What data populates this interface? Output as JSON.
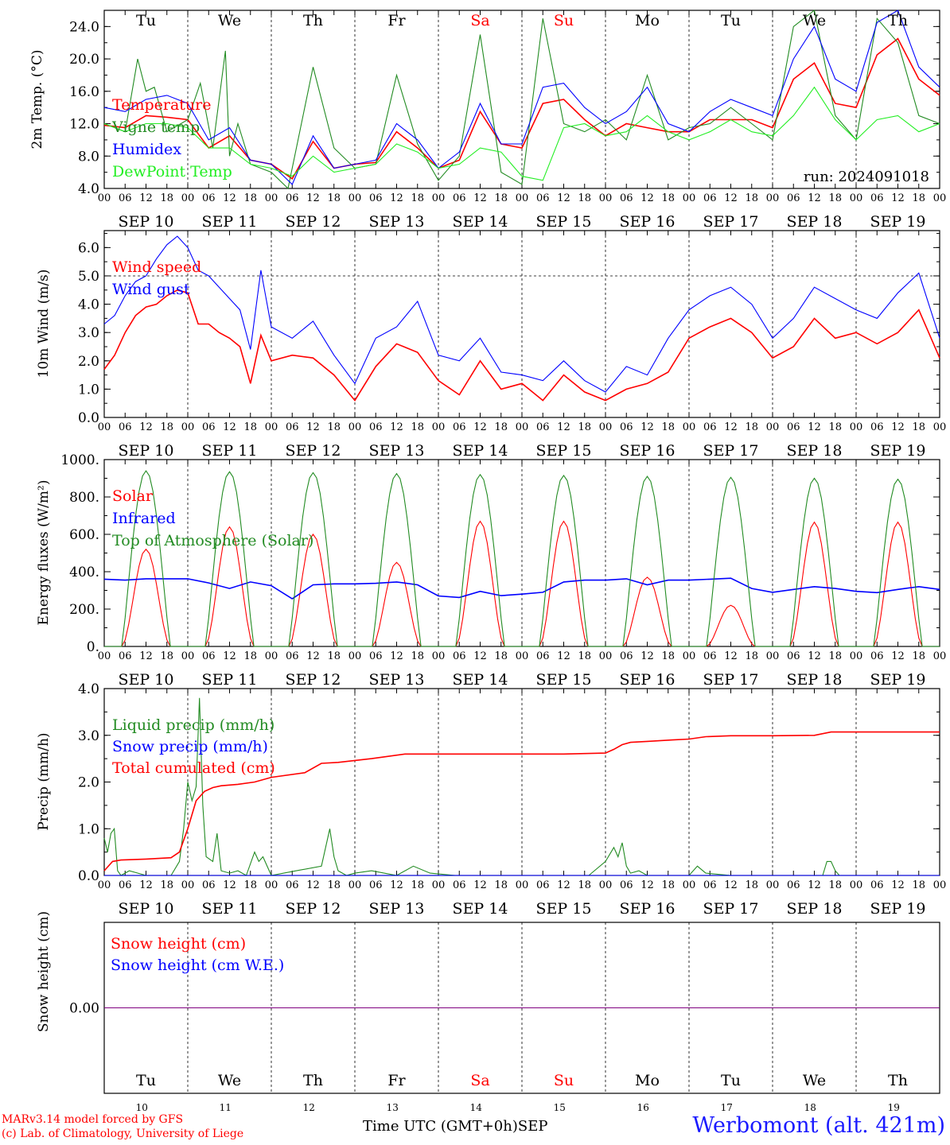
{
  "station": "Werbomont (alt. 421m)",
  "credits": [
    "MARv3.14 model forced by GFS",
    "(c) Lab. of Climatology, University of Liege"
  ],
  "xaxis_title": "Time UTC (GMT+0h)",
  "month_label": "SEP",
  "colors": {
    "red": "#ff0000",
    "green": "#228B22",
    "blue": "#0000ff",
    "lightgreen": "#22ee22",
    "purple": "#800080",
    "station": "#1a1aff"
  },
  "days": {
    "weekdays": [
      "Tu",
      "We",
      "Th",
      "Fr",
      "Sa",
      "Su",
      "Mo",
      "Tu",
      "We",
      "Th"
    ],
    "weekend_flags": [
      false,
      false,
      false,
      false,
      true,
      true,
      false,
      false,
      false,
      false
    ],
    "dates": [
      "SEP 10",
      "SEP 11",
      "SEP 12",
      "SEP 13",
      "SEP 14",
      "SEP 15",
      "SEP 16",
      "SEP 17",
      "SEP 18",
      "SEP 19"
    ],
    "day_numbers": [
      "10",
      "11",
      "12",
      "13",
      "14",
      "15",
      "16",
      "17",
      "18",
      "19"
    ],
    "hour_ticks": [
      "00",
      "06",
      "12",
      "18"
    ],
    "last_hour_tick": "00"
  },
  "chart_data": [
    {
      "type": "line",
      "id": "temp",
      "ylabel": "2m Temp. (°C)",
      "ylim": [
        4,
        26
      ],
      "yticks": [
        "4.0",
        "8.0",
        "12.0",
        "16.0",
        "20.0",
        "24.0"
      ],
      "ytick_values": [
        4,
        8,
        12,
        16,
        20,
        24
      ],
      "annotation": "run: 2024091018",
      "x_unit": "days since SEP 10 00 UTC",
      "series": [
        {
          "name": "Temperature",
          "color": "#ff0000",
          "x": [
            0,
            0.25,
            0.5,
            0.75,
            1,
            1.25,
            1.5,
            1.75,
            2,
            2.25,
            2.5,
            2.75,
            3,
            3.25,
            3.5,
            3.75,
            4,
            4.25,
            4.5,
            4.75,
            5,
            5.25,
            5.5,
            5.75,
            6,
            6.25,
            6.5,
            6.75,
            7,
            7.25,
            7.5,
            7.75,
            8,
            8.25,
            8.5,
            8.75,
            9,
            9.25,
            9.5,
            9.75,
            10
          ],
          "values": [
            11.8,
            11.5,
            13.0,
            12.8,
            12.5,
            9.0,
            10.5,
            7.5,
            7.0,
            5.2,
            9.8,
            6.5,
            7.0,
            7.2,
            11.0,
            9.0,
            6.5,
            7.5,
            13.5,
            9.5,
            9.0,
            14.5,
            15.0,
            12.5,
            10.5,
            12.0,
            11.5,
            11.0,
            11.0,
            12.5,
            12.5,
            12.5,
            11.5,
            17.5,
            19.5,
            14.5,
            14.0,
            20.5,
            22.5,
            17.5,
            15.5
          ]
        },
        {
          "name": "Vigne temp",
          "color": "#228B22",
          "x": [
            0,
            0.25,
            0.4,
            0.5,
            0.6,
            0.75,
            1,
            1.15,
            1.3,
            1.45,
            1.5,
            1.6,
            1.75,
            2,
            2.2,
            2.5,
            2.75,
            3,
            3.25,
            3.5,
            3.75,
            4,
            4.25,
            4.5,
            4.75,
            5,
            5.25,
            5.5,
            5.75,
            6,
            6.25,
            6.5,
            6.75,
            7,
            7.25,
            7.5,
            7.75,
            8,
            8.25,
            8.5,
            8.75,
            9,
            9.25,
            9.5,
            9.75,
            10
          ],
          "values": [
            12.0,
            11.0,
            20.0,
            16.0,
            16.5,
            11.0,
            12.5,
            17.0,
            9.0,
            21.0,
            8.0,
            12.0,
            7.0,
            6.0,
            4.0,
            19.0,
            9.0,
            6.5,
            7.0,
            18.0,
            9.5,
            5.0,
            8.0,
            23.0,
            6.0,
            4.5,
            25.0,
            12.0,
            11.0,
            12.5,
            10.0,
            18.0,
            10.0,
            11.5,
            12.0,
            14.0,
            12.0,
            10.0,
            24.0,
            26.0,
            13.0,
            10.0,
            25.0,
            22.0,
            13.0,
            12.0
          ]
        },
        {
          "name": "Humidex",
          "color": "#0000ff",
          "x": [
            0,
            0.25,
            0.5,
            0.75,
            1,
            1.25,
            1.5,
            1.75,
            2,
            2.25,
            2.5,
            2.75,
            3,
            3.25,
            3.5,
            3.75,
            4,
            4.25,
            4.5,
            4.75,
            5,
            5.25,
            5.5,
            5.75,
            6,
            6.25,
            6.5,
            6.75,
            7,
            7.25,
            7.5,
            7.75,
            8,
            8.25,
            8.5,
            8.75,
            9,
            9.25,
            9.5,
            9.75,
            10
          ],
          "values": [
            14.0,
            13.5,
            15.0,
            15.5,
            14.5,
            10.0,
            11.5,
            7.5,
            7.0,
            4.5,
            10.5,
            6.5,
            7.0,
            7.5,
            12.0,
            10.0,
            6.5,
            8.5,
            14.5,
            9.5,
            9.5,
            16.5,
            17.0,
            14.0,
            12.0,
            13.5,
            16.5,
            12.0,
            11.0,
            13.5,
            15.0,
            14.0,
            13.0,
            20.0,
            24.0,
            17.5,
            16.0,
            24.5,
            26.0,
            19.0,
            16.5
          ]
        },
        {
          "name": "DewPoint Temp",
          "color": "#22ee22",
          "x": [
            0,
            0.25,
            0.5,
            0.75,
            1,
            1.25,
            1.5,
            1.75,
            2,
            2.25,
            2.5,
            2.75,
            3,
            3.25,
            3.5,
            3.75,
            4,
            4.25,
            4.5,
            4.75,
            5,
            5.25,
            5.5,
            5.75,
            6,
            6.25,
            6.5,
            6.75,
            7,
            7.25,
            7.5,
            7.75,
            8,
            8.25,
            8.5,
            8.75,
            9,
            9.25,
            9.5,
            9.75,
            10
          ],
          "values": [
            12.0,
            11.0,
            12.0,
            12.0,
            11.5,
            9.0,
            9.0,
            7.0,
            6.5,
            5.5,
            8.0,
            6.0,
            6.5,
            7.0,
            9.5,
            8.5,
            6.5,
            7.0,
            9.0,
            8.5,
            5.5,
            5.0,
            11.5,
            12.0,
            10.5,
            11.0,
            13.0,
            11.0,
            10.0,
            11.0,
            12.5,
            11.0,
            10.5,
            13.0,
            16.5,
            12.5,
            10.0,
            12.5,
            13.0,
            11.0,
            12.0
          ]
        }
      ]
    },
    {
      "type": "line",
      "id": "wind",
      "ylabel": "10m Wind (m/s)",
      "ylim": [
        0,
        6.6
      ],
      "yticks": [
        "0.0",
        "1.0",
        "2.0",
        "3.0",
        "4.0",
        "5.0",
        "6.0"
      ],
      "ytick_values": [
        0,
        1,
        2,
        3,
        4,
        5,
        6
      ],
      "reference_line": 5.0,
      "x_unit": "days since SEP 10 00 UTC",
      "series": [
        {
          "name": "Wind speed",
          "color": "#ff0000",
          "x": [
            0,
            0.125,
            0.25,
            0.375,
            0.5,
            0.625,
            0.75,
            0.875,
            1,
            1.125,
            1.25,
            1.375,
            1.5,
            1.625,
            1.75,
            1.875,
            2,
            2.25,
            2.5,
            2.75,
            3,
            3.25,
            3.5,
            3.75,
            4,
            4.25,
            4.5,
            4.75,
            5,
            5.25,
            5.5,
            5.75,
            6,
            6.25,
            6.5,
            6.75,
            7,
            7.25,
            7.5,
            7.75,
            8,
            8.25,
            8.5,
            8.75,
            9,
            9.25,
            9.5,
            9.75,
            10
          ],
          "values": [
            1.7,
            2.2,
            3.0,
            3.6,
            3.9,
            4.0,
            4.3,
            4.5,
            4.4,
            3.3,
            3.3,
            3.0,
            2.8,
            2.5,
            1.2,
            2.9,
            2.0,
            2.2,
            2.1,
            1.5,
            0.6,
            1.8,
            2.6,
            2.3,
            1.3,
            0.8,
            2.0,
            1.0,
            1.2,
            0.6,
            1.5,
            0.9,
            0.6,
            1.0,
            1.2,
            1.6,
            2.8,
            3.2,
            3.5,
            3.0,
            2.1,
            2.5,
            3.5,
            2.8,
            3.0,
            2.6,
            3.0,
            3.8,
            2.1
          ]
        },
        {
          "name": "Wind gust",
          "color": "#0000ff",
          "x": [
            0,
            0.125,
            0.25,
            0.375,
            0.5,
            0.625,
            0.75,
            0.875,
            1,
            1.125,
            1.25,
            1.375,
            1.5,
            1.625,
            1.75,
            1.875,
            2,
            2.25,
            2.5,
            2.75,
            3,
            3.25,
            3.5,
            3.75,
            4,
            4.25,
            4.5,
            4.75,
            5,
            5.25,
            5.5,
            5.75,
            6,
            6.25,
            6.5,
            6.75,
            7,
            7.25,
            7.5,
            7.75,
            8,
            8.25,
            8.5,
            8.75,
            9,
            9.25,
            9.5,
            9.75,
            10
          ],
          "values": [
            3.3,
            3.6,
            4.3,
            4.8,
            5.0,
            5.6,
            6.1,
            6.4,
            6.0,
            5.2,
            5.0,
            4.6,
            4.2,
            3.8,
            2.4,
            5.2,
            3.2,
            2.8,
            3.4,
            2.2,
            1.2,
            2.8,
            3.2,
            4.1,
            2.2,
            2.0,
            2.8,
            1.6,
            1.5,
            1.3,
            2.0,
            1.3,
            0.9,
            1.8,
            1.5,
            2.8,
            3.8,
            4.3,
            4.6,
            4.0,
            2.8,
            3.5,
            4.6,
            4.2,
            3.8,
            3.5,
            4.4,
            5.1,
            2.8
          ]
        }
      ]
    },
    {
      "type": "line",
      "id": "energy",
      "ylabel": "Energy fluxes (W/m²)",
      "ylim": [
        0,
        1000
      ],
      "yticks": [
        "0.",
        "200.",
        "400.",
        "600.",
        "800.",
        "1000."
      ],
      "ytick_values": [
        0,
        200,
        400,
        600,
        800,
        1000
      ],
      "x_unit": "days since SEP 10 00 UTC",
      "solar_peaks": [
        520,
        640,
        600,
        450,
        670,
        670,
        370,
        220,
        665,
        665
      ],
      "toa_peaks": [
        940,
        935,
        930,
        925,
        920,
        915,
        910,
        905,
        900,
        895
      ],
      "daylight_hours": [
        5,
        19
      ],
      "series": [
        {
          "name": "Solar",
          "color": "#ff0000"
        },
        {
          "name": "Infrared",
          "color": "#0000ff",
          "x": [
            0,
            0.25,
            0.5,
            0.75,
            1,
            1.25,
            1.5,
            1.75,
            2,
            2.25,
            2.5,
            2.75,
            3,
            3.25,
            3.5,
            3.75,
            4,
            4.25,
            4.5,
            4.75,
            5,
            5.25,
            5.5,
            5.75,
            6,
            6.25,
            6.5,
            6.75,
            7,
            7.25,
            7.5,
            7.75,
            8,
            8.25,
            8.5,
            8.75,
            9,
            9.25,
            9.5,
            9.75,
            10
          ],
          "values": [
            360,
            355,
            362,
            362,
            362,
            340,
            310,
            345,
            325,
            255,
            330,
            335,
            335,
            338,
            345,
            330,
            270,
            262,
            295,
            272,
            280,
            290,
            345,
            355,
            355,
            362,
            330,
            355,
            355,
            360,
            365,
            310,
            290,
            305,
            320,
            310,
            295,
            288,
            305,
            320,
            305
          ]
        },
        {
          "name": "Top of Atmosphere (Solar)",
          "color": "#228B22"
        }
      ]
    },
    {
      "type": "line",
      "id": "precip",
      "ylabel": "Precip (mm/h)",
      "ylim": [
        0,
        4.0
      ],
      "yticks": [
        "0.0",
        "1.0",
        "2.0",
        "3.0",
        "4.0"
      ],
      "ytick_values": [
        0,
        1,
        2,
        3,
        4
      ],
      "x_unit": "days since SEP 10 00 UTC",
      "series": [
        {
          "name": "Liquid precip (mm/h)",
          "color": "#228B22",
          "x": [
            0,
            0.04,
            0.08,
            0.12,
            0.16,
            0.2,
            0.3,
            0.5,
            0.8,
            0.9,
            0.95,
            1.0,
            1.05,
            1.1,
            1.14,
            1.18,
            1.22,
            1.3,
            1.35,
            1.4,
            1.5,
            1.6,
            1.7,
            1.8,
            1.85,
            1.9,
            2.0,
            2.3,
            2.6,
            2.7,
            2.75,
            2.8,
            2.9,
            3.0,
            3.2,
            3.5,
            3.7,
            3.9,
            4.2,
            5.0,
            5.8,
            6.0,
            6.1,
            6.15,
            6.2,
            6.25,
            6.3,
            6.4,
            6.5,
            6.8,
            7.0,
            7.1,
            7.2,
            7.5,
            8.0,
            8.6,
            8.65,
            8.7,
            8.75,
            8.8,
            9.0,
            10.0
          ],
          "values": [
            0.8,
            0.5,
            0.9,
            1.0,
            0.1,
            0.0,
            0.1,
            0.0,
            0.0,
            0.3,
            1.0,
            2.0,
            1.6,
            1.9,
            3.8,
            1.5,
            0.4,
            0.3,
            0.9,
            0.1,
            0.05,
            0.1,
            0.0,
            0.5,
            0.3,
            0.4,
            0.0,
            0.1,
            0.2,
            1.0,
            0.4,
            0.1,
            0.0,
            0.05,
            0.1,
            0.0,
            0.2,
            0.05,
            0.0,
            0.0,
            0.0,
            0.3,
            0.6,
            0.4,
            0.7,
            0.2,
            0.05,
            0.1,
            0.0,
            0.0,
            0.0,
            0.2,
            0.05,
            0.0,
            0.0,
            0.0,
            0.3,
            0.3,
            0.1,
            0.0,
            0.0,
            0.0
          ]
        },
        {
          "name": "Snow precip (mm/h)",
          "color": "#0000ff",
          "x": [
            0,
            10
          ],
          "values": [
            0,
            0
          ]
        },
        {
          "name": "Total cumulated (cm)",
          "color": "#ff0000",
          "x": [
            0,
            0.1,
            0.2,
            0.5,
            0.8,
            0.9,
            1.0,
            1.1,
            1.2,
            1.3,
            1.4,
            1.6,
            1.8,
            2.0,
            2.4,
            2.6,
            2.8,
            3.2,
            3.6,
            4.0,
            4.5,
            5.0,
            5.5,
            6.0,
            6.1,
            6.2,
            6.3,
            6.5,
            6.8,
            7.0,
            7.2,
            7.5,
            8.0,
            8.5,
            8.7,
            9.0,
            9.5,
            10.0
          ],
          "values": [
            0.1,
            0.3,
            0.33,
            0.35,
            0.38,
            0.5,
            1.0,
            1.6,
            1.8,
            1.88,
            1.92,
            1.95,
            2.0,
            2.1,
            2.2,
            2.4,
            2.42,
            2.5,
            2.6,
            2.6,
            2.6,
            2.6,
            2.6,
            2.62,
            2.7,
            2.8,
            2.85,
            2.87,
            2.9,
            2.92,
            2.97,
            2.99,
            2.99,
            3.0,
            3.07,
            3.07,
            3.07,
            3.07
          ]
        }
      ]
    },
    {
      "type": "line",
      "id": "snow",
      "ylabel": "Snow height (cm)",
      "ylim": [
        -1,
        1
      ],
      "yticks": [
        "0.00"
      ],
      "ytick_values": [
        0
      ],
      "x_unit": "days since SEP 10 00 UTC",
      "series": [
        {
          "name": "Snow height (cm)",
          "color": "#ff0000",
          "x": [
            0,
            10
          ],
          "values": [
            0,
            0
          ]
        },
        {
          "name": "Snow height (cm W.E.)",
          "color": "#0000ff",
          "x": [
            0,
            10
          ],
          "values": [
            0,
            0
          ]
        }
      ]
    }
  ]
}
